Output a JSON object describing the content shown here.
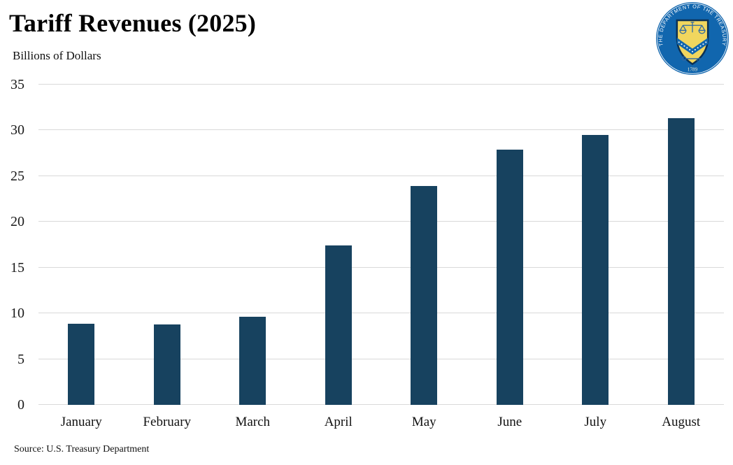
{
  "header": {
    "title": "Tariff Revenues (2025)",
    "subtitle": "Billions of Dollars"
  },
  "footer": {
    "source": "Source: U.S. Treasury Department"
  },
  "seal": {
    "ring_text": "THE DEPARTMENT OF THE TREASURY",
    "year": "1789"
  },
  "chart_data": {
    "type": "bar",
    "title": "Tariff Revenues (2025)",
    "subtitle": "Billions of Dollars",
    "categories": [
      "January",
      "February",
      "March",
      "April",
      "May",
      "June",
      "July",
      "August"
    ],
    "values": [
      8.9,
      8.8,
      9.6,
      17.4,
      23.9,
      27.9,
      29.5,
      31.3
    ],
    "xlabel": "",
    "ylabel": "Billions of Dollars",
    "ylim": [
      0,
      35
    ],
    "ytick_step": 5,
    "yticks": [
      0,
      5,
      10,
      15,
      20,
      25,
      30,
      35
    ],
    "grid": true,
    "legend": "none",
    "bar_color": "#17425f",
    "gridline_color": "#d9d9d9",
    "source": "Source: U.S. Treasury Department"
  }
}
